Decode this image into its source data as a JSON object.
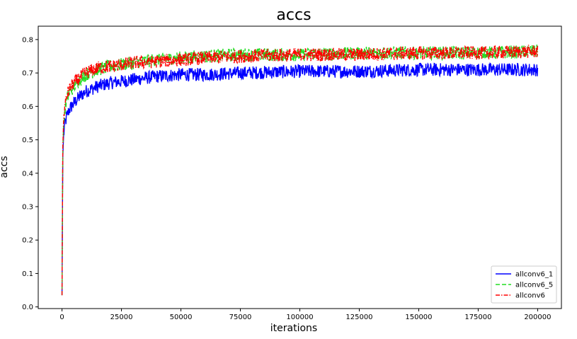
{
  "chart_data": {
    "type": "line",
    "title": "accs",
    "xlabel": "iterations",
    "ylabel": "accs",
    "xlim": [
      -10000,
      210000
    ],
    "ylim": [
      -0.005,
      0.84
    ],
    "x_ticks": [
      0,
      25000,
      50000,
      75000,
      100000,
      125000,
      150000,
      175000,
      200000
    ],
    "y_ticks": [
      0.0,
      0.1,
      0.2,
      0.3,
      0.4,
      0.5,
      0.6,
      0.7,
      0.8
    ],
    "grid": false,
    "legend_position": "lower-right",
    "series": [
      {
        "name": "allconv6_1",
        "color": "#0000ff",
        "dash": "solid",
        "x": [
          0,
          300,
          600,
          1000,
          2000,
          3000,
          5000,
          7500,
          10000,
          15000,
          20000,
          25000,
          30000,
          40000,
          50000,
          60000,
          75000,
          100000,
          125000,
          150000,
          175000,
          200000
        ],
        "values": [
          0.035,
          0.44,
          0.5,
          0.54,
          0.57,
          0.59,
          0.61,
          0.63,
          0.645,
          0.66,
          0.67,
          0.675,
          0.68,
          0.69,
          0.695,
          0.695,
          0.7,
          0.705,
          0.705,
          0.71,
          0.71,
          0.71
        ]
      },
      {
        "name": "allconv6_5",
        "color": "#22dd22",
        "dash": "dashed",
        "x": [
          0,
          300,
          600,
          1000,
          2000,
          3000,
          5000,
          7500,
          10000,
          15000,
          20000,
          25000,
          30000,
          40000,
          50000,
          60000,
          75000,
          100000,
          125000,
          150000,
          175000,
          200000
        ],
        "values": [
          0.035,
          0.46,
          0.53,
          0.58,
          0.62,
          0.64,
          0.66,
          0.68,
          0.695,
          0.71,
          0.72,
          0.725,
          0.73,
          0.74,
          0.745,
          0.75,
          0.755,
          0.755,
          0.76,
          0.76,
          0.76,
          0.765
        ]
      },
      {
        "name": "allconv6",
        "color": "#ff0000",
        "dash": "dashdot",
        "x": [
          0,
          300,
          600,
          1000,
          2000,
          3000,
          5000,
          7500,
          10000,
          15000,
          20000,
          25000,
          30000,
          40000,
          50000,
          60000,
          75000,
          100000,
          125000,
          150000,
          175000,
          200000
        ],
        "values": [
          0.035,
          0.47,
          0.54,
          0.59,
          0.63,
          0.65,
          0.67,
          0.685,
          0.7,
          0.715,
          0.72,
          0.725,
          0.73,
          0.735,
          0.74,
          0.745,
          0.75,
          0.755,
          0.755,
          0.76,
          0.76,
          0.765
        ]
      }
    ]
  }
}
